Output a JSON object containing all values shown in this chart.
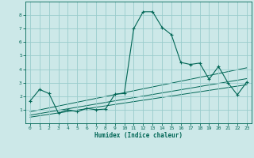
{
  "xlabel": "Humidex (Indice chaleur)",
  "background_color": "#cce8e8",
  "grid_color": "#99cccc",
  "line_color": "#006655",
  "xlim": [
    -0.5,
    23.5
  ],
  "ylim": [
    0,
    9
  ],
  "xticks": [
    0,
    1,
    2,
    3,
    4,
    5,
    6,
    7,
    8,
    9,
    10,
    11,
    12,
    13,
    14,
    15,
    16,
    17,
    18,
    19,
    20,
    21,
    22,
    23
  ],
  "yticks": [
    1,
    2,
    3,
    4,
    5,
    6,
    7,
    8
  ],
  "main_x": [
    0,
    1,
    2,
    3,
    4,
    5,
    6,
    7,
    8,
    9,
    10,
    11,
    12,
    13,
    14,
    15,
    16,
    17,
    18,
    19,
    20,
    21,
    22,
    23
  ],
  "main_y": [
    1.65,
    2.5,
    2.2,
    0.75,
    1.0,
    0.85,
    1.1,
    1.0,
    1.05,
    2.15,
    2.2,
    7.0,
    8.25,
    8.25,
    7.1,
    6.55,
    4.5,
    4.35,
    4.45,
    3.25,
    4.2,
    3.0,
    2.1,
    3.05
  ],
  "linear_lines": [
    {
      "x": [
        0,
        23
      ],
      "y": [
        0.85,
        4.1
      ]
    },
    {
      "x": [
        0,
        23
      ],
      "y": [
        0.6,
        3.3
      ]
    },
    {
      "x": [
        0,
        23
      ],
      "y": [
        0.45,
        2.85
      ]
    }
  ]
}
